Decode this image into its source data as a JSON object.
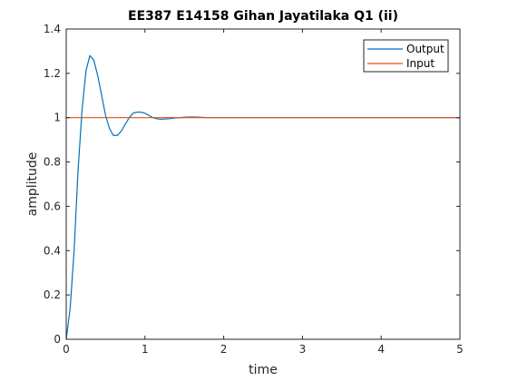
{
  "chart_data": {
    "type": "line",
    "title": "EE387 E14158 Gihan Jayatilaka Q1 (ii)",
    "xlabel": "time",
    "ylabel": "amplitude",
    "xlim": [
      0,
      5
    ],
    "ylim": [
      0,
      1.4
    ],
    "xticks": [
      "0",
      "1",
      "2",
      "3",
      "4",
      "5"
    ],
    "yticks": [
      "0",
      "0.2",
      "0.4",
      "0.6",
      "0.8",
      "1",
      "1.2",
      "1.4"
    ],
    "grid": false,
    "legend_position": "top-right",
    "series": [
      {
        "name": "Output",
        "color": "#0072bd",
        "x": [
          0,
          0.05,
          0.1,
          0.15,
          0.2,
          0.25,
          0.3,
          0.35,
          0.4,
          0.45,
          0.5,
          0.55,
          0.6,
          0.65,
          0.7,
          0.75,
          0.8,
          0.85,
          0.9,
          0.95,
          1.0,
          1.05,
          1.1,
          1.15,
          1.2,
          1.3,
          1.4,
          1.5,
          1.6,
          1.7,
          1.8,
          2.0,
          2.5,
          3.0,
          3.5,
          4.0,
          4.5,
          5.0
        ],
        "y": [
          0,
          0.14,
          0.4,
          0.76,
          1.03,
          1.21,
          1.28,
          1.26,
          1.19,
          1.1,
          1.01,
          0.95,
          0.92,
          0.92,
          0.94,
          0.97,
          1.0,
          1.02,
          1.025,
          1.025,
          1.02,
          1.01,
          1.0,
          0.995,
          0.993,
          0.995,
          0.999,
          1.002,
          1.003,
          1.002,
          1.0,
          1.0,
          1.0,
          1.0,
          1.0,
          1.0,
          1.0,
          1.0
        ]
      },
      {
        "name": "Input",
        "color": "#d95319",
        "x": [
          0,
          5
        ],
        "y": [
          1,
          1
        ]
      }
    ]
  }
}
